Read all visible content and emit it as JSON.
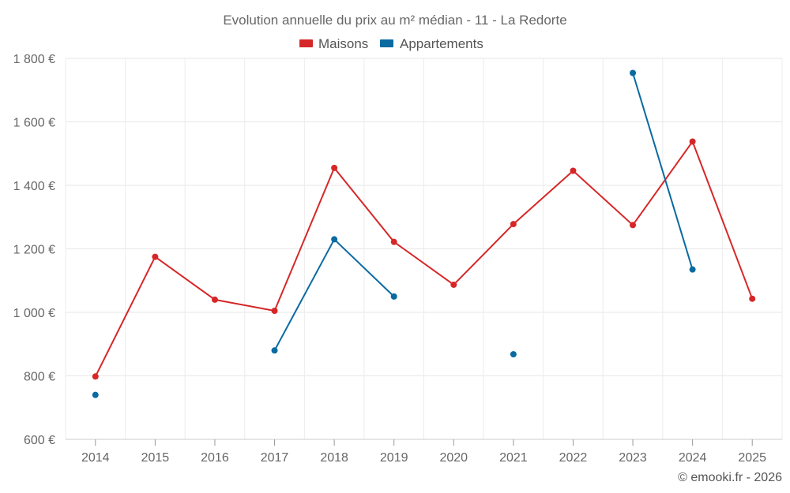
{
  "chart_data": {
    "type": "line",
    "title": "Evolution annuelle du prix au m² médian - 11 - La Redorte",
    "credit": "© emooki.fr - 2026",
    "categories": [
      "2014",
      "2015",
      "2016",
      "2017",
      "2018",
      "2019",
      "2020",
      "2021",
      "2022",
      "2023",
      "2024",
      "2025"
    ],
    "ylim": [
      600,
      1800
    ],
    "yticks": [
      600,
      800,
      1000,
      1200,
      1400,
      1600,
      1800
    ],
    "ytick_labels": [
      "600 €",
      "800 €",
      "1 000 €",
      "1 200 €",
      "1 400 €",
      "1 600 €",
      "1 800 €"
    ],
    "grid": true,
    "legend_position": "top-center",
    "series": [
      {
        "name": "Maisons",
        "color": "#d62728",
        "values": [
          798,
          1175,
          1040,
          1005,
          1455,
          1222,
          1087,
          1278,
          1446,
          1275,
          1538,
          1043
        ]
      },
      {
        "name": "Appartements",
        "color": "#0a6aa1",
        "values": [
          740,
          null,
          null,
          880,
          1230,
          1050,
          null,
          868,
          null,
          1754,
          1135,
          null
        ]
      }
    ]
  }
}
